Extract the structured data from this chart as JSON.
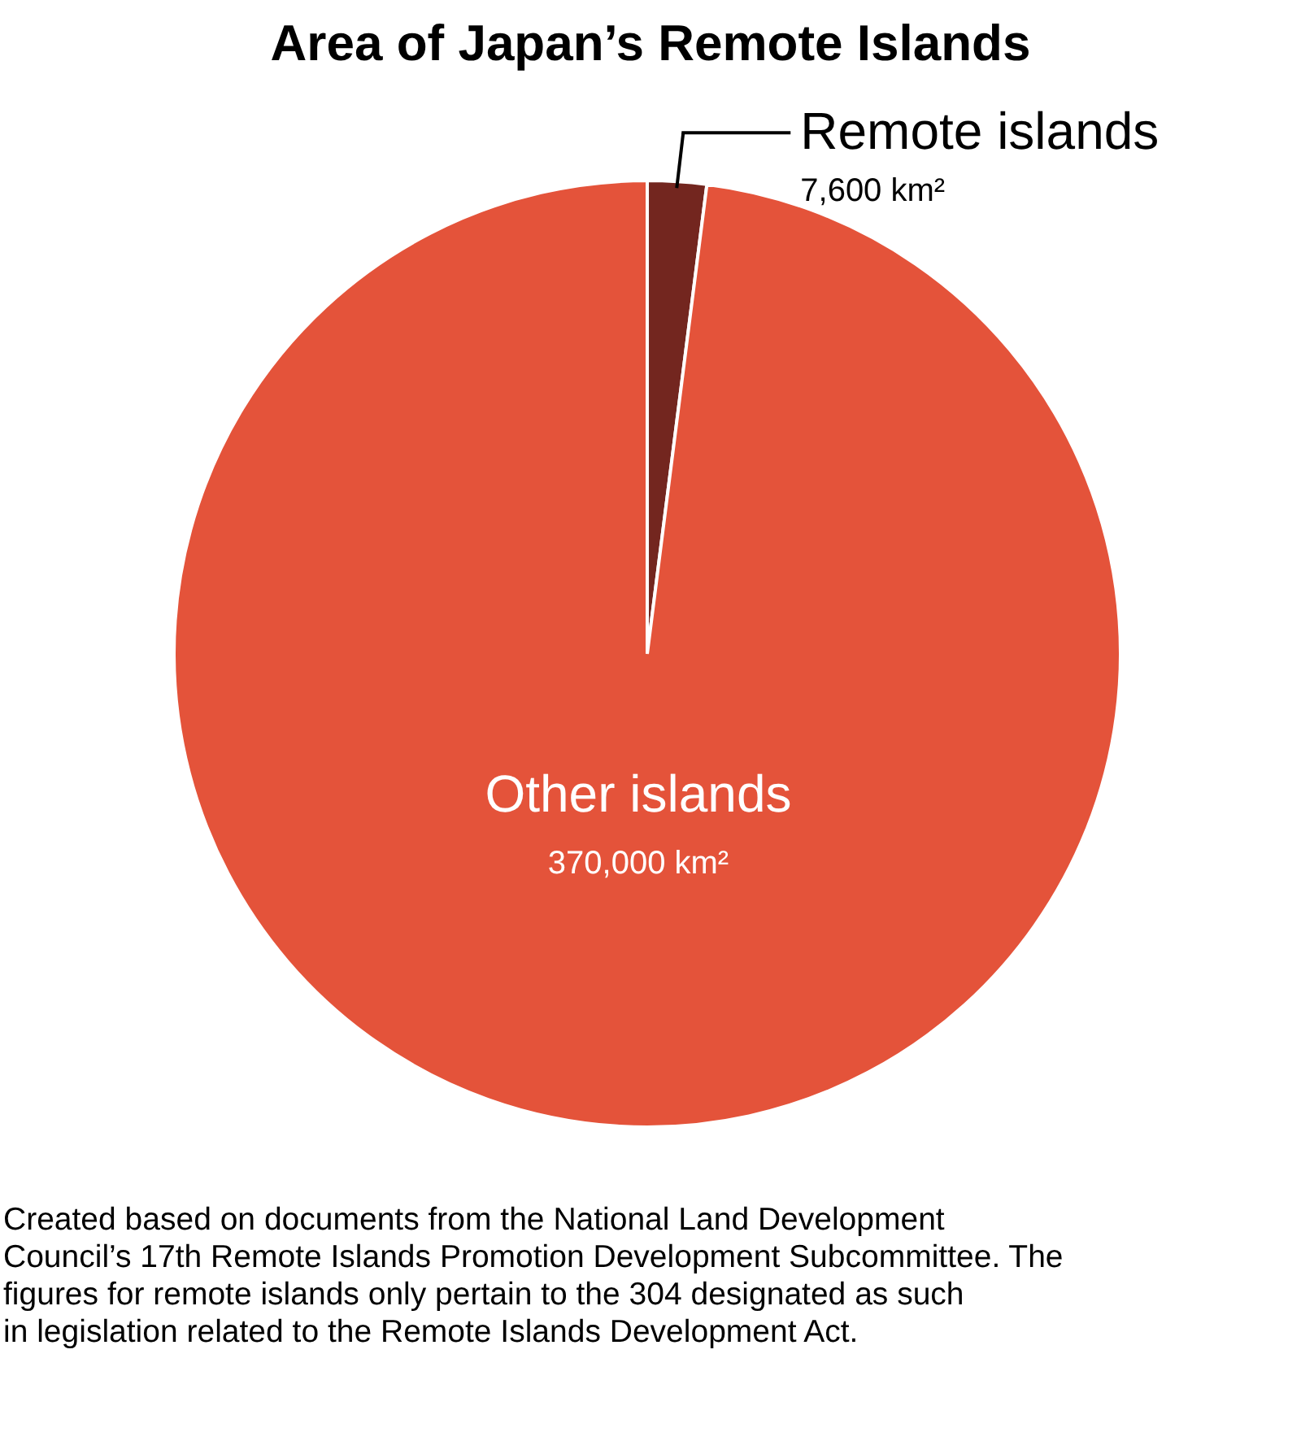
{
  "chart_data": {
    "type": "pie",
    "title": "Area of Japan’s Remote Islands",
    "categories": [
      "Remote islands",
      "Other islands"
    ],
    "values": [
      7600,
      370000
    ],
    "colors": [
      "#73261f",
      "#e4533a"
    ],
    "value_labels": [
      "7,600 km²",
      "370,000 km²"
    ],
    "annotations": [
      "Created based on documents from the National Land Development Council’s 17th Remote Islands Promotion Development Subcommittee. The figures for remote islands only pertain to the 304 designated as such in legislation related to the Remote Islands Development Act."
    ]
  }
}
